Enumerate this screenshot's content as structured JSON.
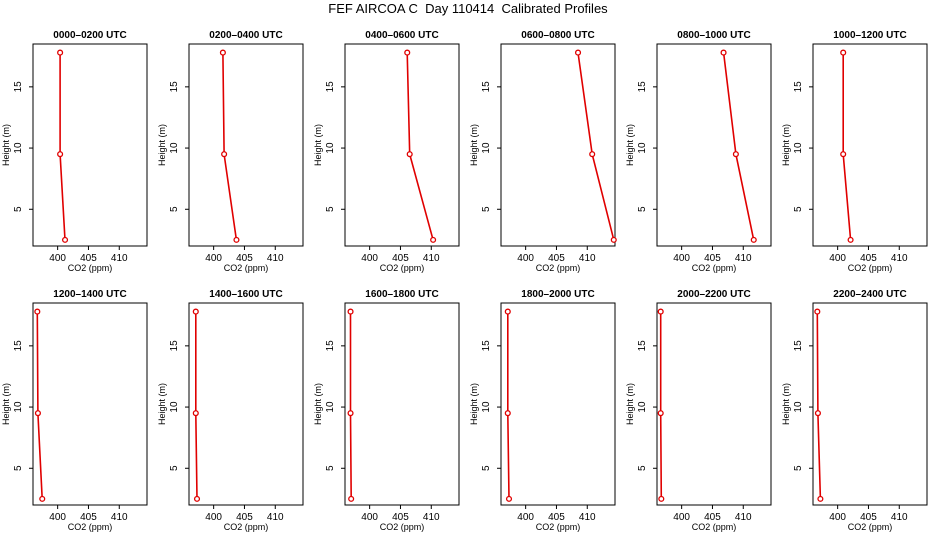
{
  "title": "FEF AIRCOA C  Day 110414  Calibrated Profiles",
  "chart_data": [
    {
      "type": "line",
      "title": "0000–0200 UTC",
      "xlabel": "CO2 (ppm)",
      "ylabel": "Height (m)",
      "x_ticks": [
        400,
        405,
        410
      ],
      "y_ticks": [
        5,
        10,
        15
      ],
      "xlim": [
        396,
        414.5
      ],
      "ylim": [
        2.0,
        18.5
      ],
      "series": [
        {
          "x": [
            400.4,
            400.4,
            401.2
          ],
          "y": [
            17.8,
            9.5,
            2.5
          ]
        }
      ]
    },
    {
      "type": "line",
      "title": "0200–0400 UTC",
      "xlabel": "CO2 (ppm)",
      "ylabel": "Height (m)",
      "x_ticks": [
        400,
        405,
        410
      ],
      "y_ticks": [
        5,
        10,
        15
      ],
      "xlim": [
        396,
        414.5
      ],
      "ylim": [
        2.0,
        18.5
      ],
      "series": [
        {
          "x": [
            401.5,
            401.7,
            403.7
          ],
          "y": [
            17.8,
            9.5,
            2.5
          ]
        }
      ]
    },
    {
      "type": "line",
      "title": "0400–0600 UTC",
      "xlabel": "CO2 (ppm)",
      "ylabel": "Height (m)",
      "x_ticks": [
        400,
        405,
        410
      ],
      "y_ticks": [
        5,
        10,
        15
      ],
      "xlim": [
        396,
        414.5
      ],
      "ylim": [
        2.0,
        18.5
      ],
      "series": [
        {
          "x": [
            406.1,
            406.5,
            410.3
          ],
          "y": [
            17.8,
            9.5,
            2.5
          ]
        }
      ]
    },
    {
      "type": "line",
      "title": "0600–0800 UTC",
      "xlabel": "CO2 (ppm)",
      "ylabel": "Height (m)",
      "x_ticks": [
        400,
        405,
        410
      ],
      "y_ticks": [
        5,
        10,
        15
      ],
      "xlim": [
        396,
        414.5
      ],
      "ylim": [
        2.0,
        18.5
      ],
      "series": [
        {
          "x": [
            408.5,
            410.8,
            414.3
          ],
          "y": [
            17.8,
            9.5,
            2.5
          ]
        }
      ]
    },
    {
      "type": "line",
      "title": "0800–1000 UTC",
      "xlabel": "CO2 (ppm)",
      "ylabel": "Height (m)",
      "x_ticks": [
        400,
        405,
        410
      ],
      "y_ticks": [
        5,
        10,
        15
      ],
      "xlim": [
        396,
        414.5
      ],
      "ylim": [
        2.0,
        18.5
      ],
      "series": [
        {
          "x": [
            406.8,
            408.8,
            411.7
          ],
          "y": [
            17.8,
            9.5,
            2.5
          ]
        }
      ]
    },
    {
      "type": "line",
      "title": "1000–1200 UTC",
      "xlabel": "CO2 (ppm)",
      "ylabel": "Height (m)",
      "x_ticks": [
        400,
        405,
        410
      ],
      "y_ticks": [
        5,
        10,
        15
      ],
      "xlim": [
        396,
        414.5
      ],
      "ylim": [
        2.0,
        18.5
      ],
      "series": [
        {
          "x": [
            400.9,
            400.9,
            402.1
          ],
          "y": [
            17.8,
            9.5,
            2.5
          ]
        }
      ]
    },
    {
      "type": "line",
      "title": "1200–1400 UTC",
      "xlabel": "CO2 (ppm)",
      "ylabel": "Height (m)",
      "x_ticks": [
        400,
        405,
        410
      ],
      "y_ticks": [
        5,
        10,
        15
      ],
      "xlim": [
        396,
        414.5
      ],
      "ylim": [
        2.0,
        18.5
      ],
      "series": [
        {
          "x": [
            396.7,
            396.8,
            397.5
          ],
          "y": [
            17.8,
            9.5,
            2.5
          ]
        }
      ]
    },
    {
      "type": "line",
      "title": "1400–1600 UTC",
      "xlabel": "CO2 (ppm)",
      "ylabel": "Height (m)",
      "x_ticks": [
        400,
        405,
        410
      ],
      "y_ticks": [
        5,
        10,
        15
      ],
      "xlim": [
        396,
        414.5
      ],
      "ylim": [
        2.0,
        18.5
      ],
      "series": [
        {
          "x": [
            397.1,
            397.1,
            397.3
          ],
          "y": [
            17.8,
            9.5,
            2.5
          ]
        }
      ]
    },
    {
      "type": "line",
      "title": "1600–1800 UTC",
      "xlabel": "CO2 (ppm)",
      "ylabel": "Height (m)",
      "x_ticks": [
        400,
        405,
        410
      ],
      "y_ticks": [
        5,
        10,
        15
      ],
      "xlim": [
        396,
        414.5
      ],
      "ylim": [
        2.0,
        18.5
      ],
      "series": [
        {
          "x": [
            396.9,
            396.9,
            397.0
          ],
          "y": [
            17.8,
            9.5,
            2.5
          ]
        }
      ]
    },
    {
      "type": "line",
      "title": "1800–2000 UTC",
      "xlabel": "CO2 (ppm)",
      "ylabel": "Height (m)",
      "x_ticks": [
        400,
        405,
        410
      ],
      "y_ticks": [
        5,
        10,
        15
      ],
      "xlim": [
        396,
        414.5
      ],
      "ylim": [
        2.0,
        18.5
      ],
      "series": [
        {
          "x": [
            397.1,
            397.1,
            397.3
          ],
          "y": [
            17.8,
            9.5,
            2.5
          ]
        }
      ]
    },
    {
      "type": "line",
      "title": "2000–2200 UTC",
      "xlabel": "CO2 (ppm)",
      "ylabel": "Height (m)",
      "x_ticks": [
        400,
        405,
        410
      ],
      "y_ticks": [
        5,
        10,
        15
      ],
      "xlim": [
        396,
        414.5
      ],
      "ylim": [
        2.0,
        18.5
      ],
      "series": [
        {
          "x": [
            396.6,
            396.6,
            396.7
          ],
          "y": [
            17.8,
            9.5,
            2.5
          ]
        }
      ]
    },
    {
      "type": "line",
      "title": "2200–2400 UTC",
      "xlabel": "CO2 (ppm)",
      "ylabel": "Height (m)",
      "x_ticks": [
        400,
        405,
        410
      ],
      "y_ticks": [
        5,
        10,
        15
      ],
      "xlim": [
        396,
        414.5
      ],
      "ylim": [
        2.0,
        18.5
      ],
      "series": [
        {
          "x": [
            396.7,
            396.8,
            397.2
          ],
          "y": [
            17.8,
            9.5,
            2.5
          ]
        }
      ]
    }
  ]
}
